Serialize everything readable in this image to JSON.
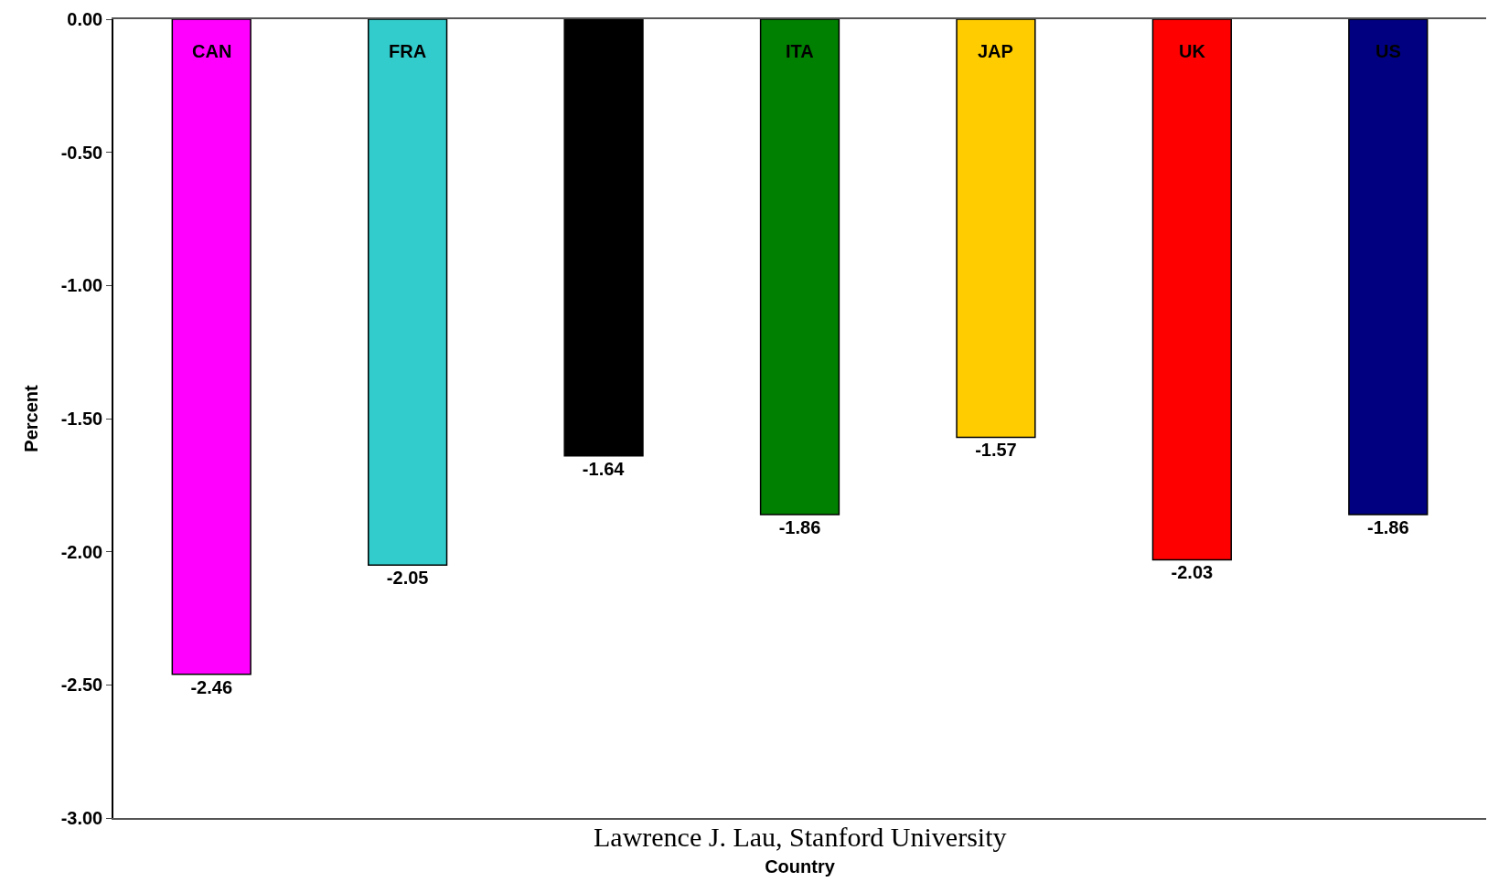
{
  "chart_data": {
    "type": "bar",
    "xlabel": "Country",
    "ylabel": "Percent",
    "categories": [
      "CAN",
      "FRA",
      null,
      "ITA",
      "JAP",
      "UK",
      "US"
    ],
    "values": [
      -2.46,
      -2.05,
      -1.64,
      -1.86,
      -1.57,
      -2.03,
      -1.86
    ],
    "colors": [
      "#ff00ff",
      "#33cccc",
      "#000000",
      "#008000",
      "#ffcc00",
      "#ff0000",
      "#000080"
    ],
    "ylim": [
      -3,
      0
    ],
    "yticks": [
      {
        "value": 0,
        "label": "0.00"
      },
      {
        "value": -0.5,
        "label": "-0.50"
      },
      {
        "value": -1,
        "label": "-1.00"
      },
      {
        "value": -1.5,
        "label": "-1.50"
      },
      {
        "value": -2,
        "label": "-2.00"
      },
      {
        "value": -2.5,
        "label": "-2.50"
      },
      {
        "value": -3,
        "label": "-3.00"
      }
    ],
    "data_labels": true,
    "annotations": [
      "Lawrence J. Lau, Stanford University"
    ]
  }
}
